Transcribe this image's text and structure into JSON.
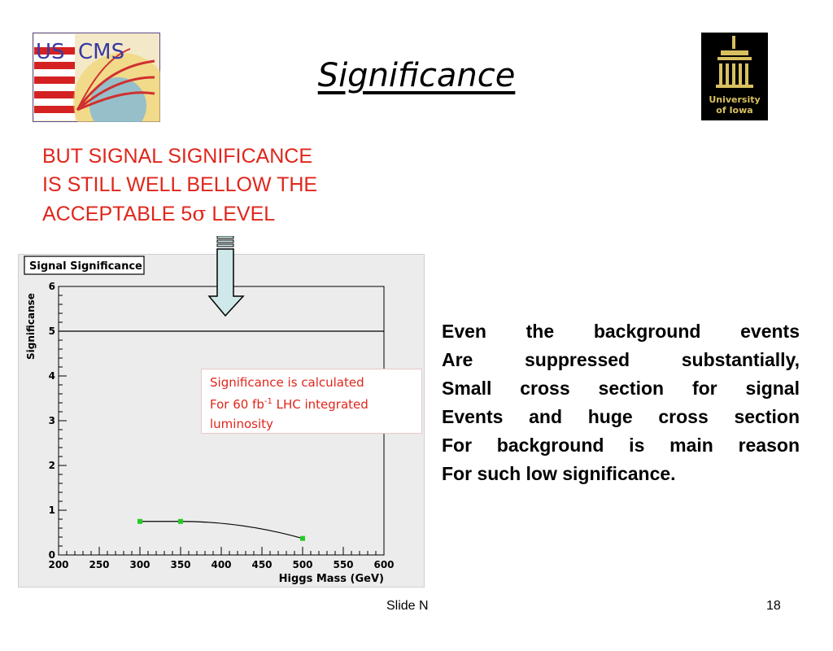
{
  "title": "Significance",
  "red_note": {
    "line1": "BUT SIGNAL  SIGNIFICANCE",
    "line2": "IS STILL WELL BELLOW THE",
    "line3_prefix": "ACCEPTABLE 5",
    "line3_sigma": "σ",
    "line3_suffix": " LEVEL"
  },
  "logos": {
    "left_text_us": "US",
    "left_text_cms": "CMS",
    "right_text_1": "University",
    "right_text_2": "of Iowa"
  },
  "annotation": {
    "line1": "Significance  is   calculated",
    "line2_a": "For 60 fb",
    "line2_sup": "-1",
    "line2_b": " LHC integrated",
    "line3": "luminosity"
  },
  "right_text": [
    "Even  the background  events",
    "Are  suppressed  substantially,",
    "Small  cross  section  for signal",
    "Events and huge cross  section",
    "For background is main reason",
    "For such low significance."
  ],
  "footer": {
    "slide_label": "Slide N",
    "slide_number": "18"
  },
  "colors": {
    "red_text": "#e0261c",
    "points": "#22cc22",
    "arrow_fill": "#cfe8ea"
  },
  "chart_data": {
    "type": "scatter",
    "title": "Signal Significance",
    "xlabel": "Higgs Mass (GeV)",
    "ylabel": "Significanse",
    "xlim": [
      200,
      600
    ],
    "ylim": [
      0,
      6
    ],
    "x_ticks": [
      "200",
      "250",
      "300",
      "350",
      "400",
      "450",
      "500",
      "550",
      "600"
    ],
    "y_ticks": [
      "0",
      "1",
      "2",
      "3",
      "4",
      "5",
      "6"
    ],
    "reference_line_y": 5,
    "series": [
      {
        "x": [
          300,
          350,
          500
        ],
        "y": [
          0.75,
          0.75,
          0.37
        ]
      }
    ],
    "grid": false
  }
}
